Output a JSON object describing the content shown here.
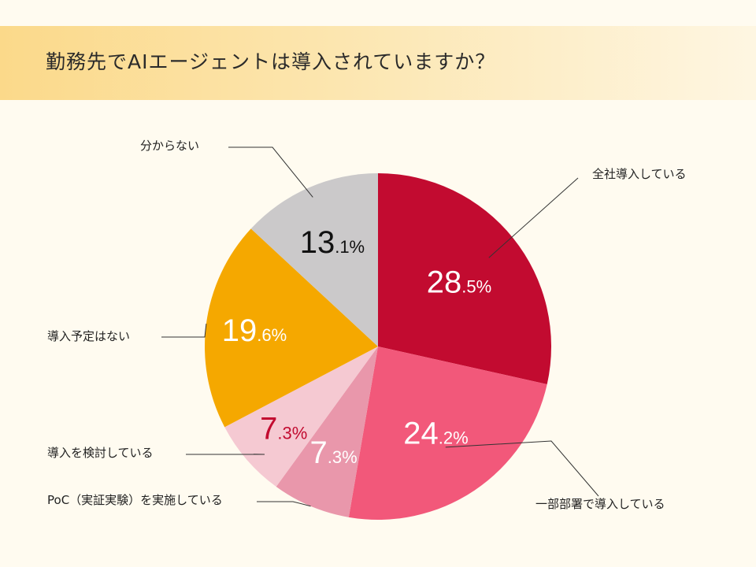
{
  "title": "勤務先でAIエージェントは導入されていますか？",
  "chart_data": {
    "type": "pie",
    "title": "勤務先でAIエージェントは導入されていますか？",
    "slices": [
      {
        "label": "全社導入している",
        "value": 28.5,
        "int": "28",
        "dec": ".5",
        "color": "#c20b30",
        "label_color": "#ffffff"
      },
      {
        "label": "一部部署で導入している",
        "value": 24.2,
        "int": "24",
        "dec": ".2",
        "color": "#f2587a",
        "label_color": "#ffffff"
      },
      {
        "label": "PoC（実証実験）を実施している",
        "value": 7.3,
        "int": "7",
        "dec": ".3",
        "color": "#e997ab",
        "label_color": "#ffffff"
      },
      {
        "label": "導入を検討している",
        "value": 7.3,
        "int": "7",
        "dec": ".3",
        "color": "#f5c9d2",
        "label_color": "#c20b30"
      },
      {
        "label": "導入予定はない",
        "value": 19.6,
        "int": "19",
        "dec": ".6",
        "color": "#f5a800",
        "label_color": "#ffffff"
      },
      {
        "label": "分からない",
        "value": 13.1,
        "int": "13",
        "dec": ".1",
        "color": "#cbc9ca",
        "label_color": "#111111"
      }
    ],
    "unit": "%"
  }
}
